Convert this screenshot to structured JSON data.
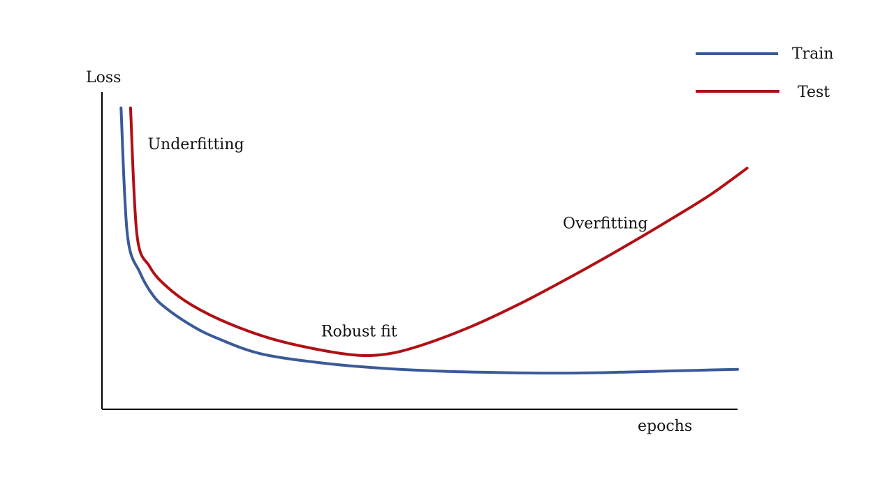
{
  "chart_data": {
    "type": "line",
    "title": "",
    "xlabel": "epochs",
    "ylabel": "Loss",
    "grid": false,
    "legend_position": "top-right",
    "xlim": [
      0,
      100
    ],
    "ylim": [
      0,
      100
    ],
    "series": [
      {
        "name": "Train",
        "color": "#3A5A98",
        "x": [
          3,
          4,
          6,
          8,
          10,
          14,
          18,
          25,
          35,
          45,
          55,
          65,
          72,
          80,
          90,
          100
        ],
        "y": [
          95,
          55,
          43,
          36,
          32,
          26.5,
          22.5,
          17.5,
          14.5,
          12.8,
          11.9,
          11.5,
          11.4,
          11.6,
          12.1,
          12.6
        ]
      },
      {
        "name": "Test",
        "color": "#B01015",
        "x": [
          4.5,
          5.5,
          7.5,
          10,
          14,
          20,
          28,
          38,
          44,
          50,
          58,
          66,
          74,
          82,
          90,
          96,
          101.5
        ],
        "y": [
          95,
          55,
          45,
          39,
          33,
          27,
          21.5,
          17.5,
          17.2,
          20,
          26,
          33.5,
          42,
          51,
          60.5,
          68,
          76
        ]
      }
    ],
    "annotations": [
      {
        "text": "Underfitting",
        "x": 7.2,
        "y": 82
      },
      {
        "text": "Robust fit",
        "x": 34.5,
        "y": 23
      },
      {
        "text": "Overfitting",
        "x": 72.5,
        "y": 57
      }
    ]
  }
}
